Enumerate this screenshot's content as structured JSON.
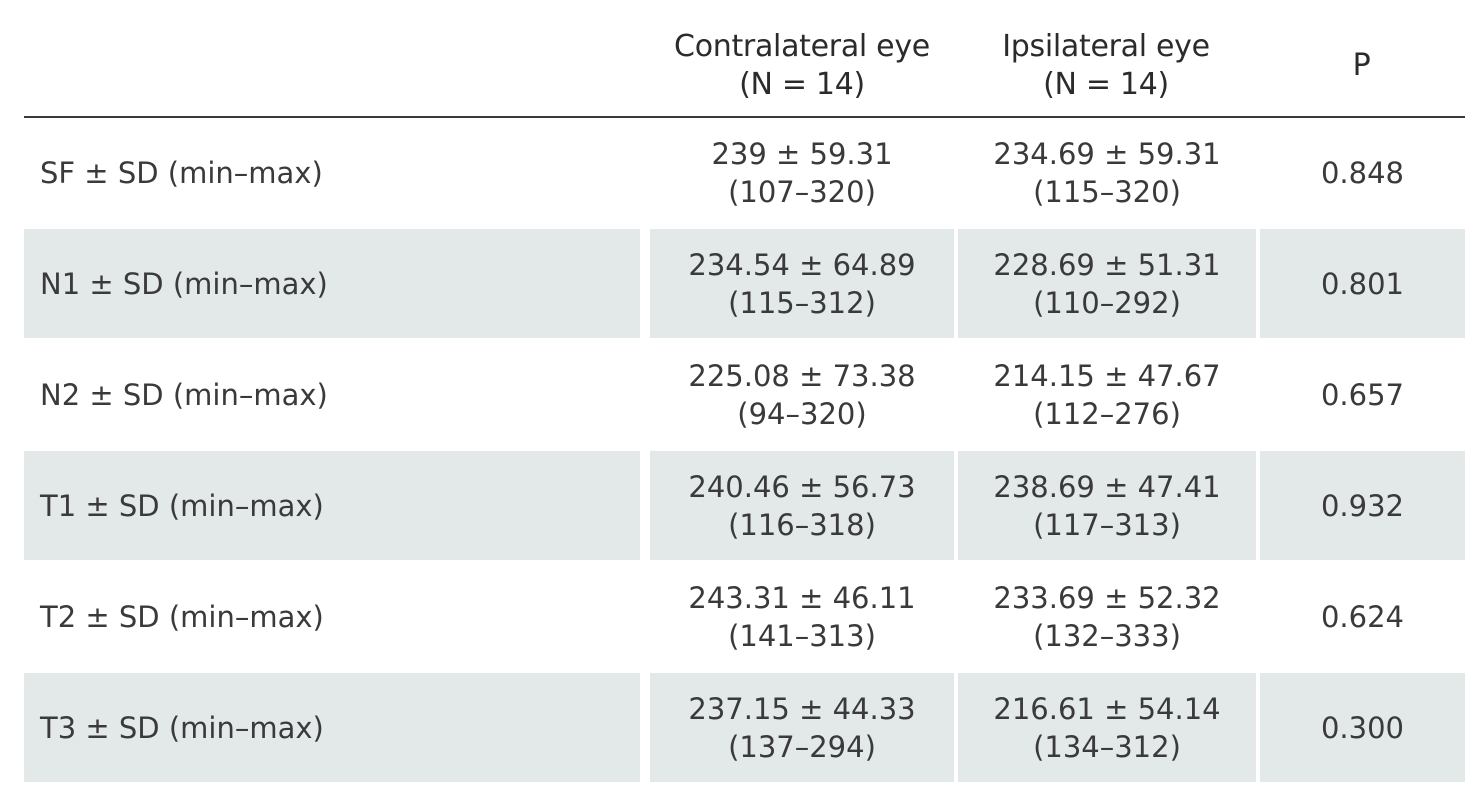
{
  "table": {
    "headers": {
      "col1": "",
      "contralateral": [
        "Contralateral eye",
        "(N = 14)"
      ],
      "ipsilateral": [
        "Ipsilateral eye",
        "(N = 14)"
      ],
      "p": "P"
    },
    "rows": [
      {
        "label": "SF ± SD (min–max)",
        "contralateral": [
          "239 ± 59.31",
          "(107–320)"
        ],
        "ipsilateral": [
          "234.69 ± 59.31",
          "(115–320)"
        ],
        "p": "0.848"
      },
      {
        "label": "N1 ± SD (min–max)",
        "contralateral": [
          "234.54 ± 64.89",
          "(115–312)"
        ],
        "ipsilateral": [
          "228.69 ± 51.31",
          "(110–292)"
        ],
        "p": "0.801"
      },
      {
        "label": "N2 ± SD (min–max)",
        "contralateral": [
          "225.08 ± 73.38",
          "(94–320)"
        ],
        "ipsilateral": [
          "214.15 ± 47.67",
          "(112–276)"
        ],
        "p": "0.657"
      },
      {
        "label": "T1 ± SD (min–max)",
        "contralateral": [
          "240.46 ± 56.73",
          "(116–318)"
        ],
        "ipsilateral": [
          "238.69 ± 47.41",
          "(117–313)"
        ],
        "p": "0.932"
      },
      {
        "label": "T2 ± SD (min–max)",
        "contralateral": [
          "243.31 ± 46.11",
          "(141–313)"
        ],
        "ipsilateral": [
          "233.69 ± 52.32",
          "(132–333)"
        ],
        "p": "0.624"
      },
      {
        "label": "T3 ± SD (min–max)",
        "contralateral": [
          "237.15 ± 44.33",
          "(137–294)"
        ],
        "ipsilateral": [
          "216.61 ± 54.14",
          "(134–312)"
        ],
        "p": "0.300"
      }
    ]
  },
  "colors": {
    "row_shade": "#e3e9e9",
    "text": "#3a3a3a",
    "rule": "#3a3a3a"
  }
}
